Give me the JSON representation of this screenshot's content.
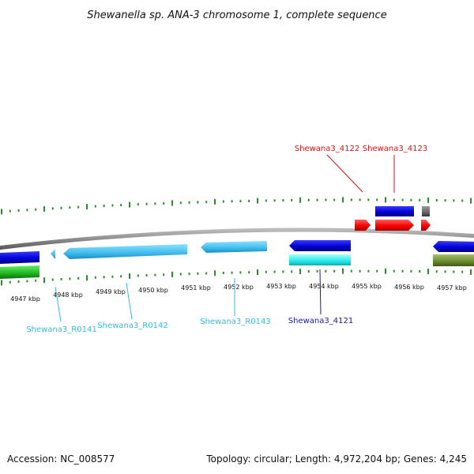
{
  "title": "Shewanella sp. ANA-3 chromosome 1, complete sequence",
  "footer": {
    "accession": "Accession: NC_008577",
    "summary": "Topology: circular; Length: 4,972,204 bp; Genes: 4,245"
  },
  "colors": {
    "backbone": "#8a8a8a",
    "gc_ticks": "#2e8b2e",
    "label_red": "#dd1111",
    "label_cyan": "#33bbdd",
    "label_navy": "#1a1a99"
  },
  "axis": {
    "ticks": [
      "4947 kbp",
      "4948 kbp",
      "4949 kbp",
      "4950 kbp",
      "4951 kbp",
      "4952 kbp",
      "4953 kbp",
      "4954 kbp",
      "4955 kbp",
      "4956 kbp",
      "4957 kbp"
    ]
  },
  "gene_labels": [
    {
      "name": "Shewana3_4122",
      "color": "red"
    },
    {
      "name": "Shewana3_4123",
      "color": "red"
    },
    {
      "name": "Shewana3_R0141",
      "color": "cyan"
    },
    {
      "name": "Shewana3_R0142",
      "color": "cyan"
    },
    {
      "name": "Shewana3_R0143",
      "color": "cyan"
    },
    {
      "name": "Shewana3_4121",
      "color": "navy"
    }
  ]
}
